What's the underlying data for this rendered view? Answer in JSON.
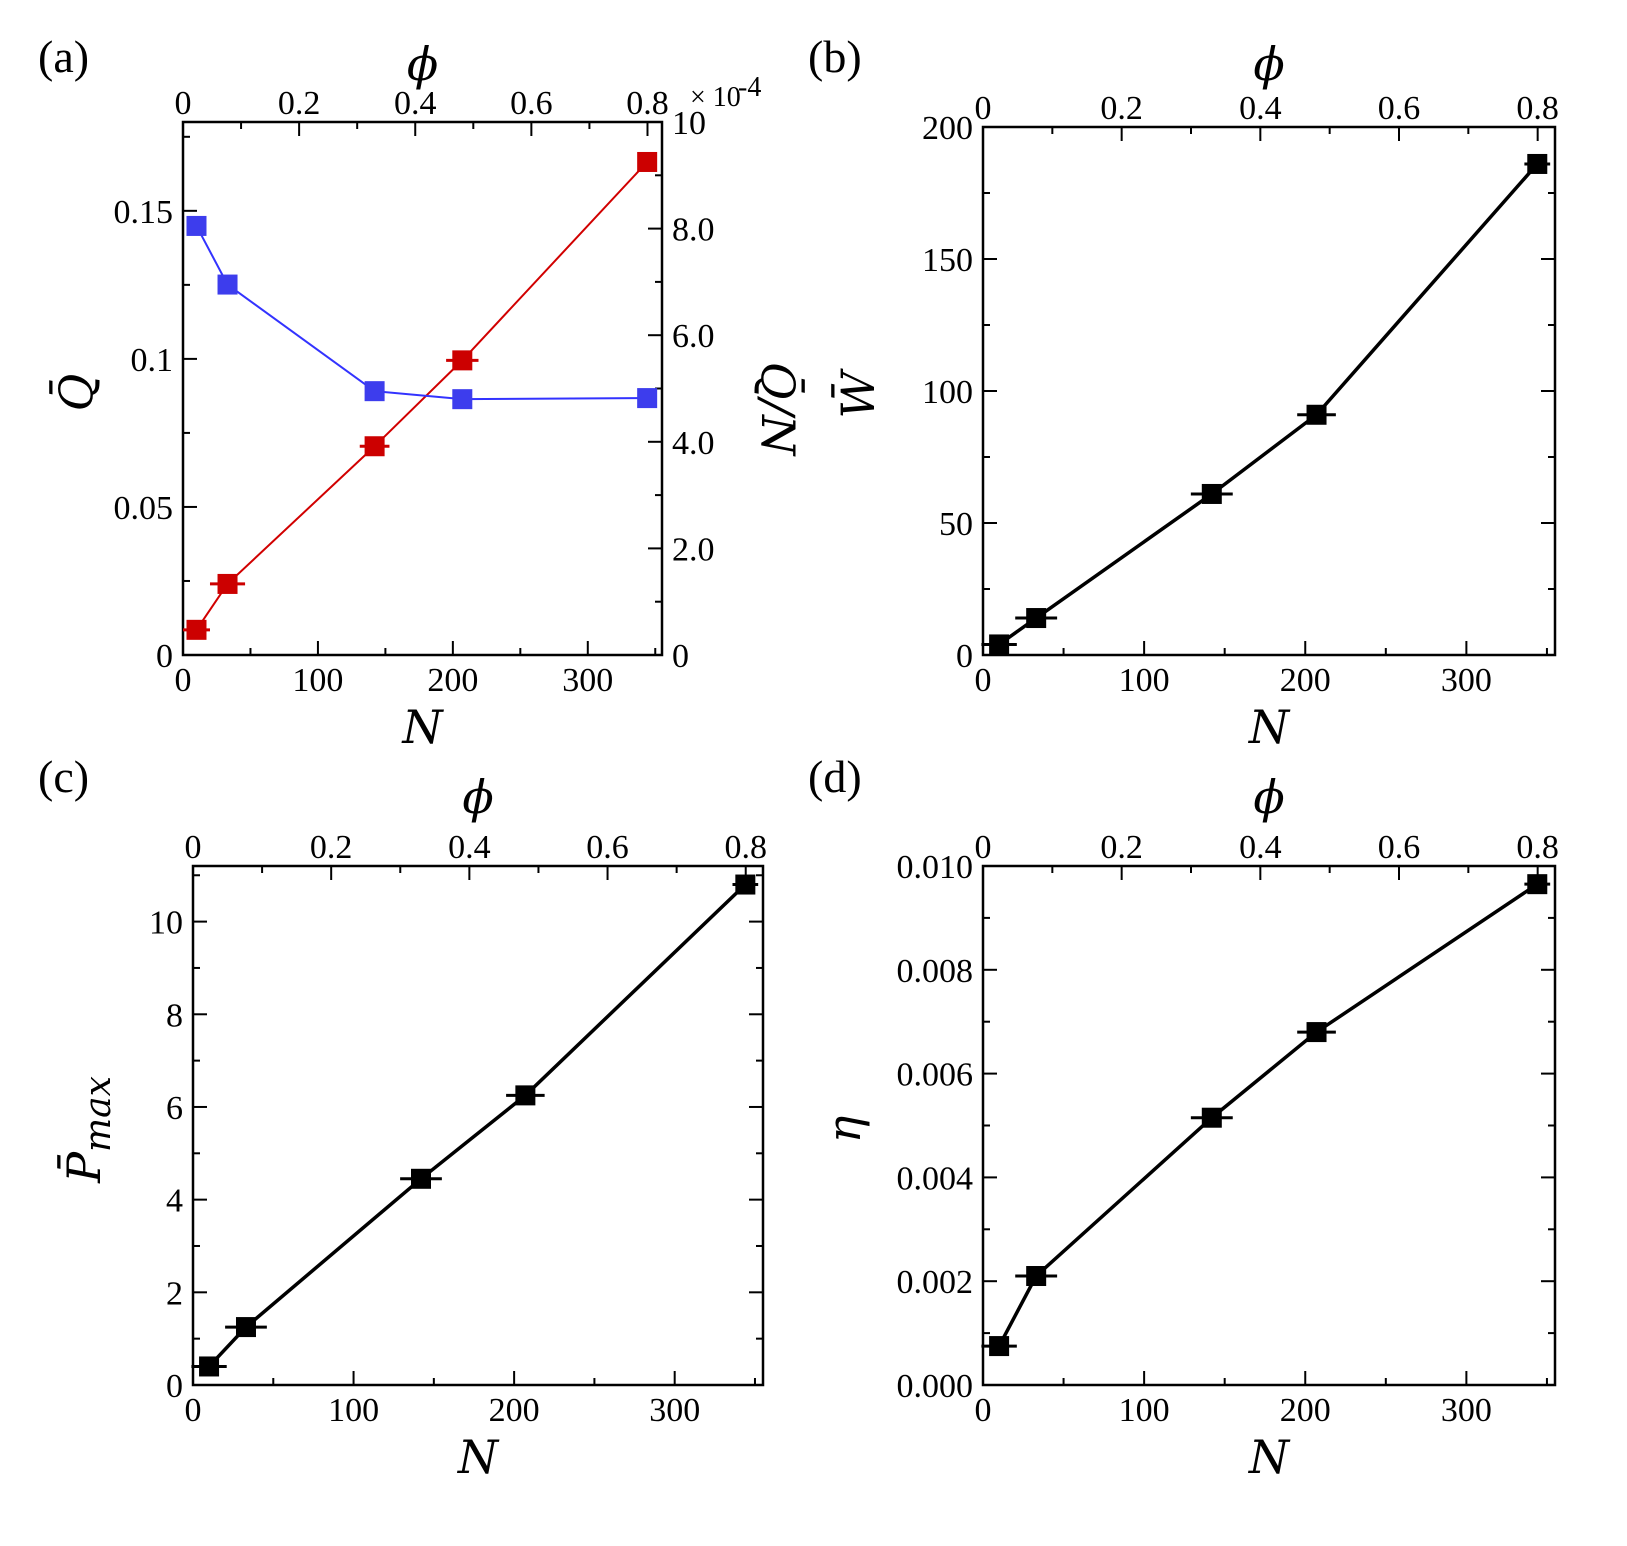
{
  "chart_data": [
    {
      "panel_label": "(a)",
      "type": "line",
      "xlabel": "N",
      "xlim": [
        0,
        355
      ],
      "x_ticks": [
        "0",
        "100",
        "200",
        "300"
      ],
      "top_xlabel": "ϕ",
      "top_xlim": [
        0,
        0.825
      ],
      "top_ticks": [
        "0",
        "0.2",
        "0.4",
        "0.6",
        "0.8"
      ],
      "ylabel": "Q̄",
      "ylabel_color": "#d10000",
      "ylim": [
        0,
        0.18
      ],
      "y_ticks": [
        "0",
        "0.05",
        "0.1",
        "0.15"
      ],
      "y2label": "Q̄/N",
      "y2label_color": "#3333ff",
      "y2lim": [
        0,
        10
      ],
      "y2_ticks": [
        "0",
        "2.0",
        "4.0",
        "6.0",
        "8.0",
        "10"
      ],
      "y2_multiplier": "× 10",
      "y2_exponent": "-4",
      "x": [
        10,
        33,
        142,
        207,
        344
      ],
      "series": [
        {
          "axis": "left",
          "color": "#d10000",
          "marker_color": "#cc0000",
          "values": [
            0.0085,
            0.024,
            0.0705,
            0.0995,
            0.1665
          ],
          "xerr": [
            10,
            13,
            11,
            12,
            7
          ]
        },
        {
          "axis": "right",
          "color": "#3333ff",
          "marker_color": "#3d3ded",
          "values": [
            8.05,
            6.95,
            4.95,
            4.8,
            4.82
          ],
          "xerr": [
            0,
            0,
            0,
            0,
            0
          ]
        }
      ]
    },
    {
      "panel_label": "(b)",
      "type": "line",
      "xlabel": "N",
      "xlim": [
        0,
        355
      ],
      "x_ticks": [
        "0",
        "100",
        "200",
        "300"
      ],
      "top_xlabel": "ϕ",
      "top_xlim": [
        0,
        0.825
      ],
      "top_ticks": [
        "0",
        "0.2",
        "0.4",
        "0.6",
        "0.8"
      ],
      "ylabel": "W̄",
      "ylabel_color": "#000000",
      "ylim": [
        0,
        200
      ],
      "y_ticks": [
        "0",
        "50",
        "100",
        "150",
        "200"
      ],
      "x": [
        10,
        33,
        142,
        207,
        344
      ],
      "series": [
        {
          "axis": "left",
          "color": "#000000",
          "marker_color": "#000000",
          "values": [
            4,
            14,
            61,
            91,
            186
          ],
          "xerr": [
            11,
            13,
            13,
            12,
            8
          ]
        }
      ]
    },
    {
      "panel_label": "(c)",
      "type": "line",
      "xlabel": "N",
      "xlim": [
        0,
        355
      ],
      "x_ticks": [
        "0",
        "100",
        "200",
        "300"
      ],
      "top_xlabel": "ϕ",
      "top_xlim": [
        0,
        0.825
      ],
      "top_ticks": [
        "0",
        "0.2",
        "0.4",
        "0.6",
        "0.8"
      ],
      "ylabel": "P̄",
      "ylabel_sub": "max",
      "ylabel_color": "#000000",
      "ylim": [
        0,
        11.2
      ],
      "y_ticks": [
        "0",
        "2",
        "4",
        "6",
        "8",
        "10"
      ],
      "x": [
        10,
        33,
        142,
        207,
        344
      ],
      "series": [
        {
          "axis": "left",
          "color": "#000000",
          "marker_color": "#000000",
          "values": [
            0.4,
            1.25,
            4.45,
            6.25,
            10.8
          ],
          "xerr": [
            11,
            13,
            13,
            12,
            8
          ]
        }
      ]
    },
    {
      "panel_label": "(d)",
      "type": "line",
      "xlabel": "N",
      "xlim": [
        0,
        355
      ],
      "x_ticks": [
        "0",
        "100",
        "200",
        "300"
      ],
      "top_xlabel": "ϕ",
      "top_xlim": [
        0,
        0.825
      ],
      "top_ticks": [
        "0",
        "0.2",
        "0.4",
        "0.6",
        "0.8"
      ],
      "ylabel": "η",
      "ylabel_color": "#000000",
      "ylim": [
        0,
        0.01
      ],
      "y_ticks": [
        "0.000",
        "0.002",
        "0.004",
        "0.006",
        "0.008",
        "0.010"
      ],
      "x": [
        10,
        33,
        142,
        207,
        344
      ],
      "series": [
        {
          "axis": "left",
          "color": "#000000",
          "marker_color": "#000000",
          "values": [
            0.00075,
            0.0021,
            0.00515,
            0.0068,
            0.00965
          ],
          "xerr": [
            11,
            13,
            13,
            12,
            8
          ]
        }
      ]
    }
  ]
}
